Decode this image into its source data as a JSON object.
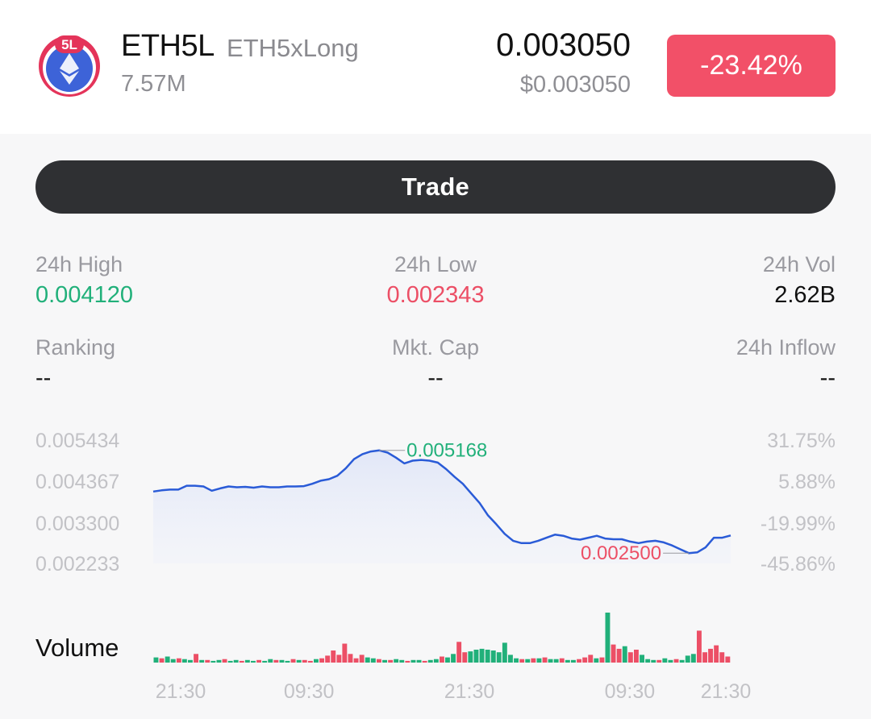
{
  "asset": {
    "badge": "5L",
    "symbol": "ETH5L",
    "name": "ETH5xLong",
    "market_cap": "7.57M",
    "price": "0.003050",
    "usd_price": "$0.003050",
    "change": "-23.42%"
  },
  "actions": {
    "trade_label": "Trade"
  },
  "stats": {
    "high": {
      "label": "24h High",
      "value": "0.004120"
    },
    "low": {
      "label": "24h Low",
      "value": "0.002343"
    },
    "vol": {
      "label": "24h Vol",
      "value": "2.62B"
    },
    "ranking": {
      "label": "Ranking",
      "value": "--"
    },
    "mktcap": {
      "label": "Mkt. Cap",
      "value": "--"
    },
    "inflow": {
      "label": "24h Inflow",
      "value": "--"
    }
  },
  "colors": {
    "up": "#21b07a",
    "down": "#ec4f66",
    "line": "#2a5bd7",
    "accent": "#f25068"
  },
  "chart_data": {
    "type": "line",
    "y_ticks": [
      "0.005434",
      "0.004367",
      "0.003300",
      "0.002233"
    ],
    "pct_ticks": [
      "31.75%",
      "5.88%",
      "-19.99%",
      "-45.86%"
    ],
    "ylim": [
      0.002233,
      0.005434
    ],
    "max_annotation": "0.005168",
    "min_annotation": "0.002500",
    "x_tick_labels": [
      "21:30",
      "09:30",
      "21:30",
      "09:30",
      "21:30"
    ],
    "x_tick_positions": [
      0,
      40,
      90,
      140,
      180
    ],
    "values": [
      0.0041,
      0.00413,
      0.00415,
      0.00415,
      0.00425,
      0.00425,
      0.00423,
      0.00412,
      0.00418,
      0.00423,
      0.00421,
      0.00422,
      0.0042,
      0.00423,
      0.00421,
      0.00421,
      0.00423,
      0.00423,
      0.00424,
      0.0043,
      0.00438,
      0.00442,
      0.00451,
      0.0047,
      0.00494,
      0.00507,
      0.00514,
      0.005168,
      0.00511,
      0.00498,
      0.00483,
      0.0049,
      0.00492,
      0.0049,
      0.00485,
      0.00468,
      0.00448,
      0.0043,
      0.00405,
      0.0038,
      0.00348,
      0.00325,
      0.003,
      0.00282,
      0.00276,
      0.00276,
      0.00282,
      0.0029,
      0.00298,
      0.00295,
      0.00288,
      0.00285,
      0.0029,
      0.00295,
      0.00288,
      0.00286,
      0.00286,
      0.0028,
      0.00276,
      0.0028,
      0.00282,
      0.00278,
      0.0027,
      0.0026,
      0.0025,
      0.00252,
      0.00265,
      0.0029,
      0.0029,
      0.00296
    ],
    "volume_label": "Volume",
    "volume": [
      {
        "v": 6,
        "up": true
      },
      {
        "v": 5,
        "up": false
      },
      {
        "v": 7,
        "up": true
      },
      {
        "v": 4,
        "up": true
      },
      {
        "v": 5,
        "up": false
      },
      {
        "v": 4,
        "up": true
      },
      {
        "v": 3,
        "up": true
      },
      {
        "v": 10,
        "up": false
      },
      {
        "v": 3,
        "up": true
      },
      {
        "v": 3,
        "up": false
      },
      {
        "v": 2,
        "up": true
      },
      {
        "v": 3,
        "up": true
      },
      {
        "v": 4,
        "up": false
      },
      {
        "v": 2,
        "up": true
      },
      {
        "v": 3,
        "up": true
      },
      {
        "v": 2,
        "up": false
      },
      {
        "v": 3,
        "up": true
      },
      {
        "v": 2,
        "up": true
      },
      {
        "v": 3,
        "up": false
      },
      {
        "v": 2,
        "up": true
      },
      {
        "v": 4,
        "up": true
      },
      {
        "v": 3,
        "up": false
      },
      {
        "v": 3,
        "up": true
      },
      {
        "v": 2,
        "up": true
      },
      {
        "v": 4,
        "up": false
      },
      {
        "v": 3,
        "up": true
      },
      {
        "v": 3,
        "up": false
      },
      {
        "v": 2,
        "up": false
      },
      {
        "v": 4,
        "up": true
      },
      {
        "v": 5,
        "up": false
      },
      {
        "v": 8,
        "up": false
      },
      {
        "v": 14,
        "up": false
      },
      {
        "v": 9,
        "up": false
      },
      {
        "v": 22,
        "up": false
      },
      {
        "v": 10,
        "up": false
      },
      {
        "v": 5,
        "up": false
      },
      {
        "v": 9,
        "up": false
      },
      {
        "v": 6,
        "up": true
      },
      {
        "v": 5,
        "up": true
      },
      {
        "v": 4,
        "up": false
      },
      {
        "v": 3,
        "up": true
      },
      {
        "v": 3,
        "up": false
      },
      {
        "v": 4,
        "up": true
      },
      {
        "v": 3,
        "up": true
      },
      {
        "v": 2,
        "up": false
      },
      {
        "v": 3,
        "up": true
      },
      {
        "v": 3,
        "up": true
      },
      {
        "v": 2,
        "up": false
      },
      {
        "v": 3,
        "up": true
      },
      {
        "v": 4,
        "up": true
      },
      {
        "v": 7,
        "up": false
      },
      {
        "v": 6,
        "up": true
      },
      {
        "v": 10,
        "up": true
      },
      {
        "v": 24,
        "up": false
      },
      {
        "v": 12,
        "up": false
      },
      {
        "v": 13,
        "up": true
      },
      {
        "v": 15,
        "up": true
      },
      {
        "v": 16,
        "up": true
      },
      {
        "v": 15,
        "up": true
      },
      {
        "v": 14,
        "up": true
      },
      {
        "v": 12,
        "up": true
      },
      {
        "v": 23,
        "up": true
      },
      {
        "v": 9,
        "up": true
      },
      {
        "v": 5,
        "up": true
      },
      {
        "v": 4,
        "up": false
      },
      {
        "v": 4,
        "up": true
      },
      {
        "v": 5,
        "up": false
      },
      {
        "v": 5,
        "up": true
      },
      {
        "v": 6,
        "up": false
      },
      {
        "v": 4,
        "up": true
      },
      {
        "v": 4,
        "up": true
      },
      {
        "v": 5,
        "up": false
      },
      {
        "v": 3,
        "up": true
      },
      {
        "v": 3,
        "up": true
      },
      {
        "v": 4,
        "up": false
      },
      {
        "v": 6,
        "up": false
      },
      {
        "v": 9,
        "up": false
      },
      {
        "v": 5,
        "up": true
      },
      {
        "v": 6,
        "up": false
      },
      {
        "v": 58,
        "up": true
      },
      {
        "v": 21,
        "up": false
      },
      {
        "v": 16,
        "up": false
      },
      {
        "v": 19,
        "up": true
      },
      {
        "v": 12,
        "up": false
      },
      {
        "v": 15,
        "up": false
      },
      {
        "v": 9,
        "up": true
      },
      {
        "v": 4,
        "up": true
      },
      {
        "v": 3,
        "up": true
      },
      {
        "v": 3,
        "up": false
      },
      {
        "v": 5,
        "up": true
      },
      {
        "v": 3,
        "up": true
      },
      {
        "v": 4,
        "up": false
      },
      {
        "v": 3,
        "up": true
      },
      {
        "v": 8,
        "up": true
      },
      {
        "v": 10,
        "up": true
      },
      {
        "v": 37,
        "up": false
      },
      {
        "v": 12,
        "up": false
      },
      {
        "v": 16,
        "up": false
      },
      {
        "v": 20,
        "up": false
      },
      {
        "v": 12,
        "up": false
      },
      {
        "v": 7,
        "up": false
      }
    ]
  }
}
